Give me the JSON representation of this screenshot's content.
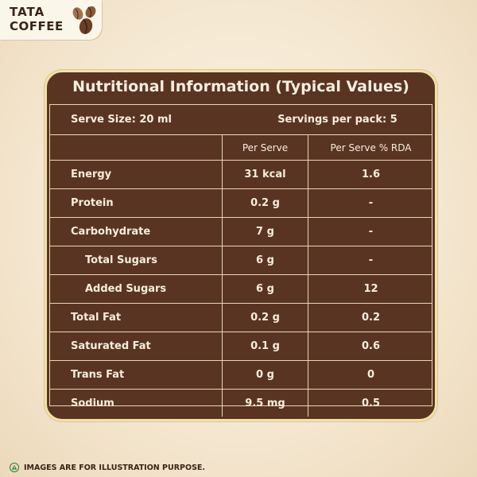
{
  "logo": {
    "brand": "TATA",
    "name": "COFFEE"
  },
  "title": "Nutritional Information (Typical Values)",
  "serve_size": "Serve Size: 20 ml",
  "servings": "Servings per pack: 5",
  "headers": {
    "col2": "Per Serve",
    "col3": "Per Serve % RDA"
  },
  "rows": [
    {
      "label": "Energy",
      "per_serve": "31 kcal",
      "rda": "1.6"
    },
    {
      "label": "Protein",
      "per_serve": "0.2 g",
      "rda": "-"
    },
    {
      "label": "Carbohydrate",
      "per_serve": "7 g",
      "rda": "-"
    },
    {
      "label": "Total Sugars",
      "per_serve": "6 g",
      "rda": "-"
    },
    {
      "label": "Added Sugars",
      "per_serve": "6 g",
      "rda": "12"
    },
    {
      "label": "Total Fat",
      "per_serve": "0.2 g",
      "rda": "0.2"
    },
    {
      "label": "Saturated Fat",
      "per_serve": "0.1 g",
      "rda": "0.6"
    },
    {
      "label": "Trans Fat",
      "per_serve": "0 g",
      "rda": "0"
    },
    {
      "label": "Sodium",
      "per_serve": "9.5 mg",
      "rda": "0.5"
    }
  ],
  "footer": "IMAGES ARE FOR ILLUSTRATION PURPOSE.",
  "colors": {
    "panel": "#5a3423",
    "border": "#efe3a8",
    "text": "#f7eedd"
  },
  "icons": {
    "beans": "coffee-beans-icon",
    "warning": "warning-triangle-icon"
  }
}
